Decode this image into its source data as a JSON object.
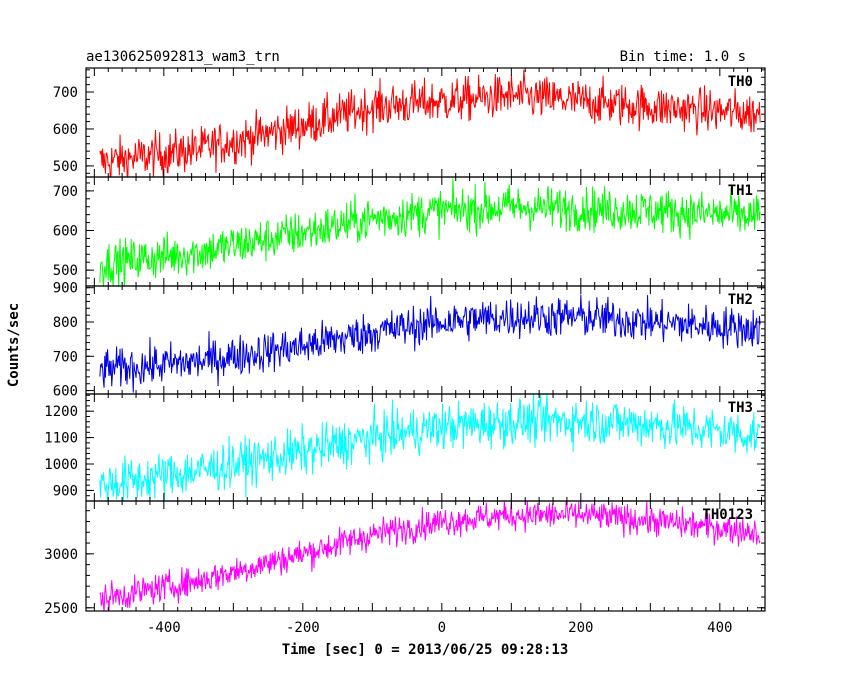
{
  "header": {
    "title": "ae130625092813_wam3_trn",
    "bin_time": "Bin time: 1.0 s"
  },
  "chart_data": {
    "type": "line",
    "xlabel": "Time [sec] 0 = 2013/06/25 09:28:13",
    "ylabel": "Counts/sec",
    "xlim": [
      -512,
      465
    ],
    "x_ticks": [
      -400,
      -200,
      0,
      200,
      400
    ],
    "x_start": -492,
    "x_end": 458,
    "panels": [
      {
        "name": "TH0",
        "color": "#ff0000",
        "ylim": [
          470,
          765
        ],
        "y_ticks": [
          500,
          600,
          700
        ],
        "trend_points": [
          [
            -492,
            510
          ],
          [
            -350,
            545
          ],
          [
            -200,
            610
          ],
          [
            -100,
            660
          ],
          [
            0,
            675
          ],
          [
            100,
            690
          ],
          [
            200,
            675
          ],
          [
            300,
            660
          ],
          [
            458,
            640
          ]
        ],
        "noise_amplitude": 30
      },
      {
        "name": "TH1",
        "color": "#00ff00",
        "ylim": [
          460,
          735
        ],
        "y_ticks": [
          500,
          600,
          700
        ],
        "trend_points": [
          [
            -492,
            515
          ],
          [
            -350,
            545
          ],
          [
            -200,
            595
          ],
          [
            -100,
            630
          ],
          [
            0,
            650
          ],
          [
            100,
            660
          ],
          [
            200,
            655
          ],
          [
            300,
            650
          ],
          [
            458,
            635
          ]
        ],
        "noise_amplitude": 28
      },
      {
        "name": "TH2",
        "color": "#0000e6",
        "ylim": [
          590,
          905
        ],
        "y_ticks": [
          600,
          700,
          800,
          900
        ],
        "trend_points": [
          [
            -492,
            660
          ],
          [
            -350,
            685
          ],
          [
            -200,
            730
          ],
          [
            -100,
            770
          ],
          [
            0,
            800
          ],
          [
            100,
            815
          ],
          [
            200,
            815
          ],
          [
            300,
            800
          ],
          [
            458,
            780
          ]
        ],
        "noise_amplitude": 30
      },
      {
        "name": "TH3",
        "color": "#00ffff",
        "ylim": [
          860,
          1265
        ],
        "y_ticks": [
          900,
          1000,
          1100,
          1200
        ],
        "trend_points": [
          [
            -492,
            920
          ],
          [
            -350,
            975
          ],
          [
            -200,
            1045
          ],
          [
            -100,
            1100
          ],
          [
            0,
            1140
          ],
          [
            100,
            1160
          ],
          [
            200,
            1165
          ],
          [
            300,
            1150
          ],
          [
            458,
            1110
          ]
        ],
        "noise_amplitude": 45
      },
      {
        "name": "TH0123",
        "color": "#ff00ff",
        "ylim": [
          2470,
          3490
        ],
        "y_ticks": [
          2500,
          3000
        ],
        "trend_points": [
          [
            -492,
            2580
          ],
          [
            -350,
            2750
          ],
          [
            -200,
            3000
          ],
          [
            -100,
            3180
          ],
          [
            0,
            3300
          ],
          [
            100,
            3360
          ],
          [
            200,
            3360
          ],
          [
            300,
            3310
          ],
          [
            458,
            3200
          ]
        ],
        "noise_amplitude": 70
      }
    ]
  }
}
